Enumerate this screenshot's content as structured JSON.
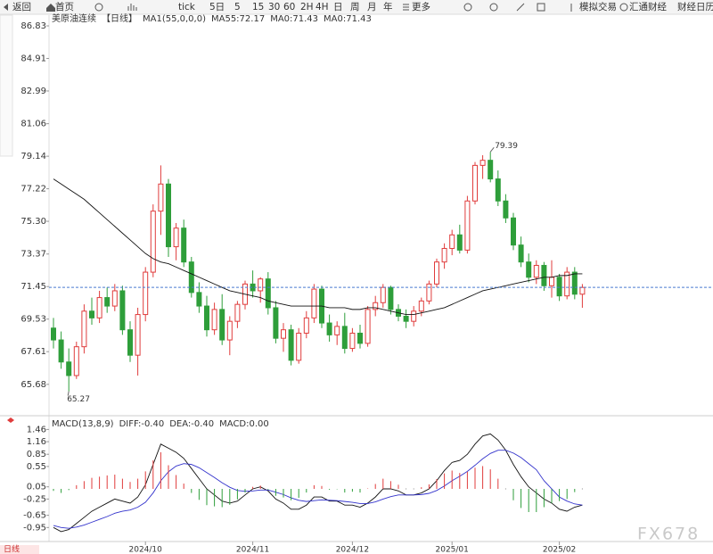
{
  "toolbar": [
    "返回",
    "首页",
    "tick",
    "5日",
    "5",
    "15",
    "30",
    "60",
    "2H",
    "4H",
    "日",
    "周",
    "月",
    "年",
    "更多",
    "模拟交易",
    "汇通财经",
    "财经日历"
  ],
  "footer_tab": "日线",
  "watermark": "FX678",
  "chart_data": [
    {
      "type": "candlestick",
      "title": "美原油连续",
      "period": "【日线】",
      "indicator": "MA1(55,0,0,0)",
      "up_color": "#e03c3c",
      "down_color": "#2e9e3a",
      "legend_extra": [
        {
          "text": "MA0:71.43",
          "color": "#3355dd"
        },
        {
          "text": "MA0:71.43",
          "color": "#f08c1e"
        }
      ],
      "categories": [
        null,
        null,
        null,
        null,
        null,
        null,
        null,
        null,
        null,
        null,
        null,
        null,
        "2024/10",
        null,
        null,
        null,
        null,
        null,
        null,
        null,
        null,
        null,
        null,
        null,
        null,
        null,
        "2024/11",
        null,
        null,
        null,
        null,
        null,
        null,
        null,
        null,
        null,
        null,
        null,
        null,
        "2024/12",
        null,
        null,
        null,
        null,
        null,
        null,
        null,
        null,
        null,
        null,
        null,
        null,
        "2025/01",
        null,
        null,
        null,
        null,
        null,
        null,
        null,
        null,
        null,
        null,
        null,
        null,
        null,
        "2025/02",
        null,
        null,
        null
      ],
      "ohlc": [
        [
          69.0,
          69.6,
          67.8,
          68.3
        ],
        [
          68.3,
          68.8,
          66.6,
          67.0
        ],
        [
          67.0,
          67.8,
          65.27,
          66.2
        ],
        [
          66.2,
          68.2,
          66.0,
          67.9
        ],
        [
          67.9,
          70.4,
          67.5,
          70.0
        ],
        [
          70.0,
          70.8,
          69.2,
          69.6
        ],
        [
          69.6,
          71.2,
          69.3,
          70.8
        ],
        [
          70.8,
          71.4,
          69.9,
          70.3
        ],
        [
          70.3,
          71.6,
          70.0,
          71.2
        ],
        [
          71.2,
          71.5,
          68.6,
          68.9
        ],
        [
          68.9,
          69.4,
          67.0,
          67.4
        ],
        [
          67.4,
          70.2,
          66.2,
          69.8
        ],
        [
          69.8,
          72.6,
          69.4,
          72.3
        ],
        [
          72.3,
          76.3,
          72.0,
          75.9
        ],
        [
          75.9,
          78.6,
          74.5,
          77.5
        ],
        [
          77.5,
          77.8,
          73.2,
          73.8
        ],
        [
          73.8,
          75.2,
          73.0,
          74.9
        ],
        [
          74.9,
          75.4,
          72.6,
          72.9
        ],
        [
          72.9,
          73.2,
          70.8,
          71.1
        ],
        [
          71.1,
          71.7,
          69.9,
          70.3
        ],
        [
          70.3,
          70.9,
          68.5,
          68.9
        ],
        [
          68.9,
          70.5,
          68.6,
          70.1
        ],
        [
          70.1,
          71.0,
          68.0,
          68.3
        ],
        [
          68.3,
          69.7,
          67.4,
          69.4
        ],
        [
          69.4,
          70.6,
          69.0,
          70.4
        ],
        [
          70.4,
          71.8,
          70.1,
          71.6
        ],
        [
          71.6,
          72.4,
          70.8,
          71.2
        ],
        [
          71.2,
          72.0,
          70.5,
          71.9
        ],
        [
          71.9,
          72.3,
          69.8,
          70.2
        ],
        [
          70.2,
          70.6,
          68.1,
          68.4
        ],
        [
          68.4,
          69.3,
          67.6,
          68.9
        ],
        [
          68.9,
          69.2,
          66.8,
          67.1
        ],
        [
          67.1,
          69.0,
          66.9,
          68.7
        ],
        [
          68.7,
          70.0,
          68.4,
          69.6
        ],
        [
          69.6,
          71.6,
          69.3,
          71.3
        ],
        [
          71.3,
          71.5,
          69.0,
          69.3
        ],
        [
          69.3,
          69.8,
          68.2,
          68.6
        ],
        [
          68.6,
          69.4,
          68.0,
          69.1
        ],
        [
          69.1,
          69.9,
          67.5,
          67.8
        ],
        [
          67.8,
          69.0,
          67.6,
          68.7
        ],
        [
          68.7,
          69.2,
          67.8,
          68.1
        ],
        [
          68.1,
          70.3,
          67.9,
          70.1
        ],
        [
          70.1,
          70.9,
          69.7,
          70.5
        ],
        [
          70.5,
          71.6,
          70.2,
          71.4
        ],
        [
          71.4,
          71.5,
          69.8,
          70.1
        ],
        [
          70.1,
          70.4,
          69.4,
          69.7
        ],
        [
          69.7,
          70.1,
          69.0,
          69.4
        ],
        [
          69.4,
          70.3,
          69.1,
          70.0
        ],
        [
          70.0,
          70.8,
          69.7,
          70.6
        ],
        [
          70.6,
          71.8,
          70.4,
          71.6
        ],
        [
          71.6,
          73.1,
          71.4,
          72.9
        ],
        [
          72.9,
          74.0,
          72.5,
          73.7
        ],
        [
          73.7,
          74.8,
          73.3,
          74.5
        ],
        [
          74.5,
          75.1,
          73.4,
          73.6
        ],
        [
          73.6,
          76.8,
          73.4,
          76.5
        ],
        [
          76.5,
          78.8,
          76.3,
          78.6
        ],
        [
          78.6,
          79.2,
          77.8,
          78.9
        ],
        [
          78.9,
          79.39,
          77.6,
          77.8
        ],
        [
          77.8,
          78.3,
          76.2,
          76.5
        ],
        [
          76.5,
          76.9,
          75.2,
          75.5
        ],
        [
          75.5,
          75.8,
          73.6,
          73.9
        ],
        [
          73.9,
          74.4,
          72.6,
          72.9
        ],
        [
          72.9,
          73.4,
          71.7,
          72.0
        ],
        [
          72.0,
          73.0,
          71.6,
          72.7
        ],
        [
          72.7,
          72.9,
          71.2,
          71.5
        ],
        [
          71.5,
          73.0,
          70.8,
          72.0
        ],
        [
          72.0,
          72.2,
          70.6,
          70.9
        ],
        [
          70.9,
          72.6,
          70.7,
          72.3
        ],
        [
          72.3,
          72.6,
          70.7,
          71.0
        ],
        [
          71.0,
          71.6,
          70.2,
          71.4
        ]
      ],
      "series": [
        {
          "name": "MA55:72.17",
          "color": "#111111",
          "values": [
            77.8,
            77.5,
            77.2,
            76.9,
            76.6,
            76.2,
            75.8,
            75.4,
            75.0,
            74.6,
            74.2,
            73.8,
            73.4,
            73.1,
            72.9,
            72.8,
            72.6,
            72.4,
            72.2,
            72.0,
            71.8,
            71.6,
            71.4,
            71.2,
            71.1,
            71.0,
            70.9,
            70.8,
            70.6,
            70.5,
            70.4,
            70.3,
            70.3,
            70.3,
            70.3,
            70.3,
            70.2,
            70.2,
            70.2,
            70.1,
            70.1,
            70.2,
            70.2,
            70.1,
            70.0,
            69.9,
            69.8,
            69.8,
            69.9,
            70.0,
            70.1,
            70.2,
            70.4,
            70.6,
            70.8,
            71.0,
            71.2,
            71.3,
            71.4,
            71.5,
            71.6,
            71.7,
            71.8,
            71.9,
            72.0,
            72.0,
            72.1,
            72.1,
            72.2,
            72.2
          ]
        }
      ],
      "ylim": [
        64.04,
        87.41
      ],
      "yticks": [
        86.83,
        84.91,
        82.99,
        81.06,
        79.14,
        77.22,
        {
          "value": 75.3,
          "label": "75.30"
        },
        73.37,
        71.45,
        69.53,
        67.61,
        65.68
      ],
      "grid": false
    },
    {
      "type": "macd",
      "title": "MACD(13,8,9)",
      "up_color": "#e03c3c",
      "down_color": "#2e9e3a",
      "series": [
        {
          "name": "DIFF:-0.40",
          "color": "#111111",
          "values": [
            -0.95,
            -1.05,
            -1.0,
            -0.85,
            -0.7,
            -0.55,
            -0.45,
            -0.35,
            -0.25,
            -0.3,
            -0.35,
            -0.2,
            0.1,
            0.6,
            1.1,
            1.0,
            0.9,
            0.75,
            0.5,
            0.25,
            0.0,
            -0.15,
            -0.3,
            -0.35,
            -0.3,
            -0.15,
            0.0,
            0.05,
            -0.05,
            -0.25,
            -0.35,
            -0.5,
            -0.5,
            -0.4,
            -0.2,
            -0.2,
            -0.3,
            -0.3,
            -0.4,
            -0.4,
            -0.45,
            -0.35,
            -0.2,
            0.0,
            0.0,
            -0.05,
            -0.15,
            -0.15,
            -0.1,
            0.0,
            0.2,
            0.45,
            0.65,
            0.7,
            0.85,
            1.1,
            1.3,
            1.35,
            1.2,
            0.95,
            0.6,
            0.3,
            0.05,
            -0.1,
            -0.25,
            -0.35,
            -0.5,
            -0.55,
            -0.45,
            -0.4
          ]
        },
        {
          "name": "DEA:-0.40",
          "color": "#3333cc",
          "values": [
            -0.9,
            -0.95,
            -0.97,
            -0.94,
            -0.89,
            -0.82,
            -0.75,
            -0.68,
            -0.6,
            -0.55,
            -0.52,
            -0.45,
            -0.33,
            -0.1,
            0.2,
            0.42,
            0.56,
            0.62,
            0.6,
            0.52,
            0.4,
            0.28,
            0.15,
            0.04,
            -0.04,
            -0.06,
            -0.05,
            -0.03,
            -0.03,
            -0.08,
            -0.14,
            -0.22,
            -0.28,
            -0.31,
            -0.29,
            -0.27,
            -0.28,
            -0.29,
            -0.31,
            -0.33,
            -0.36,
            -0.36,
            -0.32,
            -0.25,
            -0.19,
            -0.15,
            -0.15,
            -0.15,
            -0.14,
            -0.11,
            -0.04,
            0.07,
            0.2,
            0.31,
            0.43,
            0.58,
            0.74,
            0.87,
            0.95,
            0.95,
            0.88,
            0.77,
            0.62,
            0.47,
            0.2,
            0.0,
            -0.2,
            -0.3,
            -0.37,
            -0.4
          ]
        },
        {
          "name": "MACD:0.00",
          "color": "#cc22cc",
          "bars": true,
          "values": [
            -0.05,
            -0.1,
            -0.03,
            0.09,
            0.19,
            0.27,
            0.3,
            0.33,
            0.35,
            0.25,
            0.17,
            0.25,
            0.43,
            0.7,
            0.9,
            0.58,
            0.34,
            0.13,
            -0.1,
            -0.27,
            -0.4,
            -0.43,
            -0.45,
            -0.39,
            -0.26,
            -0.09,
            0.05,
            0.08,
            -0.02,
            -0.17,
            -0.21,
            -0.28,
            -0.22,
            -0.09,
            0.09,
            0.07,
            -0.02,
            -0.01,
            -0.09,
            -0.07,
            -0.09,
            0.01,
            0.12,
            0.25,
            0.19,
            0.1,
            0,
            0,
            0.04,
            0.11,
            0.24,
            0.38,
            0.45,
            0.39,
            0.42,
            0.52,
            0.56,
            0.48,
            0.25,
            0,
            -0.28,
            -0.47,
            -0.57,
            -0.57,
            -0.45,
            -0.35,
            -0.3,
            -0.25,
            -0.08,
            0
          ]
        }
      ],
      "ylim": [
        -1.25,
        1.71
      ],
      "yticks": [
        1.46,
        1.16,
        0.85,
        0.55,
        0.05,
        -0.25,
        -0.65,
        -0.95
      ]
    }
  ]
}
